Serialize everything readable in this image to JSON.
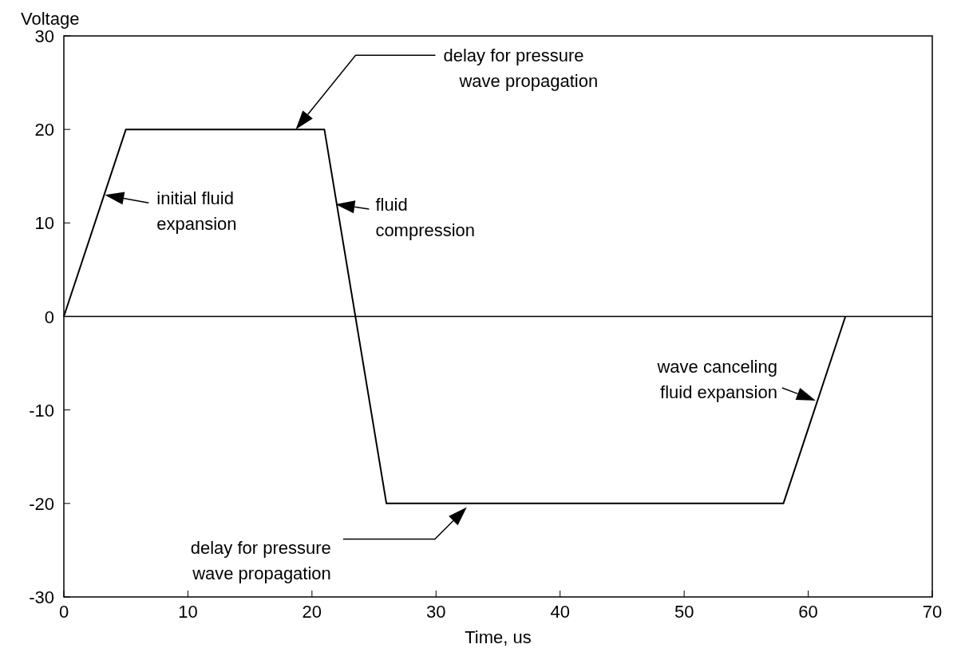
{
  "chart_data": {
    "type": "line",
    "ylabel": "Voltage",
    "xlabel": "Time, us",
    "x": [
      0,
      5,
      21,
      26,
      58,
      63
    ],
    "series": [
      {
        "color": "#000000",
        "values": [
          0,
          20,
          20,
          -20,
          -20,
          0
        ]
      }
    ],
    "xlim": [
      0,
      70
    ],
    "xticks": [
      0,
      10,
      20,
      30,
      40,
      50,
      60,
      70
    ],
    "ylim": [
      -30,
      30
    ],
    "yticks": [
      -30,
      -20,
      -10,
      0,
      10,
      20,
      30
    ],
    "ref_lines": [
      {
        "axis": "y",
        "value": 0,
        "color": "#000000"
      }
    ],
    "grid": false,
    "marker": "none",
    "line_style": "solid",
    "annotations": [
      "delay for pressure wave propagation",
      {
        "text": "initial fluid expansion",
        "x": 3.3,
        "y": 13
      },
      {
        "text": "fluid compression",
        "x": 21.9,
        "y": 12
      },
      {
        "text": "wave canceling fluid expansion",
        "x": 60.6,
        "y": -9
      },
      "delay for pressure wave propagation"
    ]
  }
}
